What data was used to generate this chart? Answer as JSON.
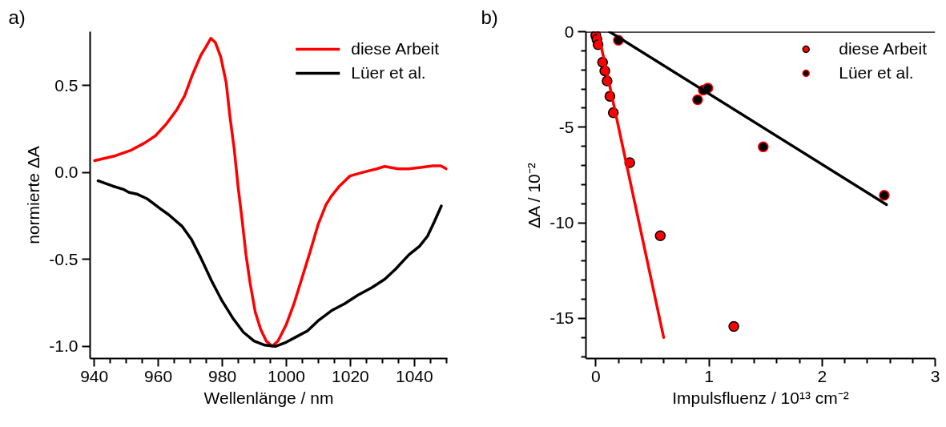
{
  "chart_data": [
    {
      "type": "line",
      "title": "a)",
      "xlabel": "Wellenlänge / nm",
      "ylabel": "normierte ΔA",
      "xlim": [
        938.7,
        1050.3
      ],
      "ylim": [
        -1.07,
        0.81
      ],
      "xticks": [
        940,
        {
          "value": 945,
          "label": null
        },
        {
          "value": 950,
          "label": null
        },
        {
          "value": 955,
          "label": null
        },
        960,
        {
          "value": 965,
          "label": null
        },
        {
          "value": 970,
          "label": null
        },
        {
          "value": 975,
          "label": null
        },
        980,
        {
          "value": 985,
          "label": null
        },
        {
          "value": 990,
          "label": null
        },
        {
          "value": 995,
          "label": null
        },
        1000,
        {
          "value": 1005,
          "label": null
        },
        {
          "value": 1010,
          "label": null
        },
        {
          "value": 1015,
          "label": null
        },
        1020,
        {
          "value": 1025,
          "label": null
        },
        {
          "value": 1030,
          "label": null
        },
        {
          "value": 1035,
          "label": null
        },
        1040,
        {
          "value": 1045,
          "label": null
        },
        {
          "value": 1050,
          "label": null
        }
      ],
      "yticks": [
        {
          "value": -1.0,
          "label": "-1.0"
        },
        -0.5,
        {
          "value": 0,
          "label": "0.0"
        },
        0.5
      ],
      "grid": false,
      "legend": "top right",
      "line_style": "solid",
      "series": [
        {
          "name": "diese Arbeit",
          "color": "#ff0000",
          "x": [
            940.1,
            946.6,
            951.6,
            955.75,
            959.1,
            962.4,
            965.75,
            968.25,
            970.75,
            973.25,
            974.9,
            976.4,
            977.8,
            979.5,
            981.2,
            982.4,
            983.7,
            984.9,
            986.2,
            987.4,
            988.7,
            990.3,
            992.0,
            993.7,
            995.6,
            997.4,
            999.9,
            1002.4,
            1004.9,
            1007.4,
            1009.9,
            1012.4,
            1014.1,
            1016.6,
            1019.9,
            1024.1,
            1028.25,
            1030.75,
            1034.9,
            1038.25,
            1042.4,
            1045.75,
            1048.25,
            1050.0
          ],
          "values": [
            0.068,
            0.096,
            0.129,
            0.17,
            0.211,
            0.277,
            0.36,
            0.442,
            0.566,
            0.673,
            0.723,
            0.772,
            0.748,
            0.665,
            0.517,
            0.318,
            0.137,
            -0.078,
            -0.276,
            -0.474,
            -0.639,
            -0.804,
            -0.903,
            -0.969,
            -1.0,
            -0.969,
            -0.878,
            -0.754,
            -0.606,
            -0.457,
            -0.3,
            -0.185,
            -0.135,
            -0.078,
            -0.02,
            0.002,
            0.021,
            0.035,
            0.021,
            0.021,
            0.03,
            0.038,
            0.038,
            0.021
          ]
        },
        {
          "name": "Lüer et al.",
          "color": "#000000",
          "x": [
            941.2,
            945.75,
            949.1,
            950.75,
            953.25,
            956.6,
            960.75,
            963.25,
            967.4,
            970.3,
            973.25,
            976.6,
            979.9,
            983.25,
            986.6,
            989.9,
            993.25,
            996.6,
            999.9,
            1003.25,
            1006.6,
            1009.9,
            1014.1,
            1018.25,
            1022.4,
            1026.6,
            1030.75,
            1034.1,
            1038.25,
            1041.6,
            1044.1,
            1046.2,
            1048.4
          ],
          "values": [
            -0.048,
            -0.078,
            -0.097,
            -0.114,
            -0.124,
            -0.152,
            -0.21,
            -0.243,
            -0.309,
            -0.383,
            -0.49,
            -0.622,
            -0.738,
            -0.837,
            -0.919,
            -0.969,
            -0.993,
            -1.0,
            -0.977,
            -0.944,
            -0.911,
            -0.853,
            -0.795,
            -0.754,
            -0.705,
            -0.663,
            -0.614,
            -0.556,
            -0.474,
            -0.424,
            -0.366,
            -0.284,
            -0.193
          ]
        }
      ]
    },
    {
      "type": "scatter",
      "title": "b)",
      "xlabel": "Impulsfluenz / 10¹³ cm⁻²",
      "ylabel": "ΔA / 10⁻²",
      "xlim": [
        -0.087,
        3.0
      ],
      "ylim": [
        -17.1,
        0
      ],
      "xticks": [
        0,
        {
          "value": 0.2,
          "label": null
        },
        {
          "value": 0.4,
          "label": null
        },
        {
          "value": 0.6,
          "label": null
        },
        {
          "value": 0.8,
          "label": null
        },
        1,
        {
          "value": 1.2,
          "label": null
        },
        {
          "value": 1.4,
          "label": null
        },
        {
          "value": 1.6,
          "label": null
        },
        {
          "value": 1.8,
          "label": null
        },
        2,
        {
          "value": 2.2,
          "label": null
        },
        {
          "value": 2.4,
          "label": null
        },
        {
          "value": 2.6,
          "label": null
        },
        {
          "value": 2.8,
          "label": null
        },
        3
      ],
      "yticks": [
        {
          "value": -17,
          "label": null
        },
        {
          "value": -16,
          "label": null
        },
        -15,
        {
          "value": -14,
          "label": null
        },
        {
          "value": -13,
          "label": null
        },
        {
          "value": -12,
          "label": null
        },
        {
          "value": -11,
          "label": null
        },
        -10,
        {
          "value": -9,
          "label": null
        },
        {
          "value": -8,
          "label": null
        },
        {
          "value": -7,
          "label": null
        },
        {
          "value": -6,
          "label": null
        },
        -5,
        {
          "value": -4,
          "label": null
        },
        {
          "value": -3,
          "label": null
        },
        {
          "value": -2,
          "label": null
        },
        {
          "value": -1,
          "label": null
        },
        0
      ],
      "grid": false,
      "legend": "top right",
      "ref_lines": [
        {
          "axis": "y",
          "value": 0,
          "color": "#000000"
        }
      ],
      "series": [
        {
          "name": "diese Arbeit",
          "color": "#ff0000",
          "marker": "circle",
          "x": [
            0.0,
            0.01,
            0.02,
            0.06,
            0.08,
            0.1,
            0.125,
            0.155,
            0.3,
            0.57,
            1.22
          ],
          "values": [
            -0.2,
            -0.4,
            -0.68,
            -1.6,
            -2.05,
            -2.58,
            -3.38,
            -4.24,
            -6.85,
            -10.68,
            -15.42
          ]
        },
        {
          "name": "Lüer et al.",
          "color": "#000000",
          "marker": "circle",
          "x": [
            0.2,
            0.9,
            0.95,
            0.99,
            1.48,
            2.55
          ],
          "values": [
            -0.45,
            -3.56,
            -3.06,
            -2.95,
            -6.03,
            -8.56
          ]
        },
        {
          "type": "line",
          "color": "#ff0000",
          "x": [
            0.02,
            0.6
          ],
          "values": [
            0,
            -16.0
          ]
        },
        {
          "type": "line",
          "color": "#000000",
          "x": [
            0.12,
            2.57
          ],
          "values": [
            0,
            -9.05
          ]
        }
      ]
    }
  ]
}
